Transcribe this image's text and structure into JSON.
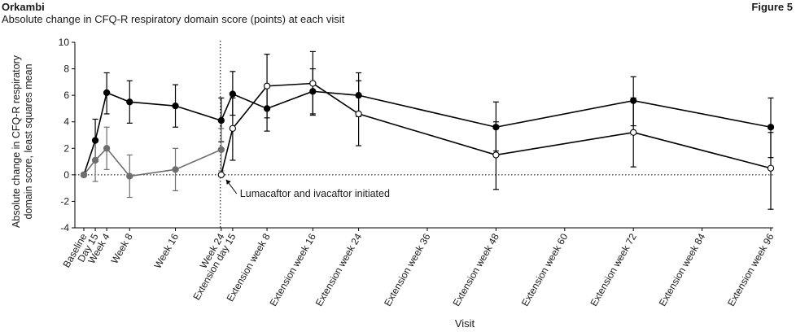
{
  "header": {
    "brand": "Orkambi",
    "subtitle": "Absolute change in CFQ-R respiratory domain score (points) at each visit",
    "figure_label": "Figure 5"
  },
  "chart_data": {
    "type": "line",
    "xlabel": "Visit",
    "ylabel_lines": [
      "Absolute change in CFQ-R respiratory",
      "domain score, least squares mean"
    ],
    "ylim": [
      -4,
      10
    ],
    "yticks": [
      -4,
      -2,
      0,
      2,
      4,
      6,
      8,
      10
    ],
    "visits": [
      {
        "label": "Baseline",
        "pos": 0
      },
      {
        "label": "Day 15",
        "pos": 0.5
      },
      {
        "label": "Week 4",
        "pos": 1
      },
      {
        "label": "Week 8",
        "pos": 2
      },
      {
        "label": "Week 16",
        "pos": 4
      },
      {
        "label": "Week 24",
        "pos": 6
      },
      {
        "label": "Extension day 15",
        "pos": 6.5
      },
      {
        "label": "Extension week 8",
        "pos": 8
      },
      {
        "label": "Extension week 16",
        "pos": 10
      },
      {
        "label": "Extension week 24",
        "pos": 12
      },
      {
        "label": "Extension week 36",
        "pos": 15
      },
      {
        "label": "Extension week 48",
        "pos": 18
      },
      {
        "label": "Extension week 60",
        "pos": 21
      },
      {
        "label": "Extension week 72",
        "pos": 24
      },
      {
        "label": "Extension week 84",
        "pos": 27
      },
      {
        "label": "Extension week 96",
        "pos": 30
      }
    ],
    "zero_line": 0,
    "treatment_start_pos": 6,
    "annotation": "Lumacaftor and ivacaftor initiated",
    "series": [
      {
        "id": "A",
        "line_color": "#000000",
        "marker_fill": "#000000",
        "points": [
          {
            "pos": 0,
            "y": 0,
            "lo": 0,
            "hi": 0
          },
          {
            "pos": 0.5,
            "y": 2.6,
            "lo": 1.0,
            "hi": 4.2
          },
          {
            "pos": 1,
            "y": 6.2,
            "lo": 4.6,
            "hi": 7.7
          },
          {
            "pos": 2,
            "y": 5.5,
            "lo": 3.9,
            "hi": 7.1
          },
          {
            "pos": 4,
            "y": 5.2,
            "lo": 3.6,
            "hi": 6.8
          },
          {
            "pos": 6,
            "y": 4.1,
            "lo": 2.5,
            "hi": 5.8
          },
          {
            "pos": 6.5,
            "y": 6.1,
            "lo": 4.5,
            "hi": 7.8
          },
          {
            "pos": 8,
            "y": 5.0,
            "lo": 3.3,
            "hi": 6.7
          },
          {
            "pos": 10,
            "y": 6.3,
            "lo": 4.6,
            "hi": 8.0
          },
          {
            "pos": 12,
            "y": 6.0,
            "lo": 4.4,
            "hi": 7.7
          },
          {
            "pos": 18,
            "y": 3.6,
            "lo": 1.8,
            "hi": 5.5
          },
          {
            "pos": 24,
            "y": 5.6,
            "lo": 3.7,
            "hi": 7.4
          },
          {
            "pos": 30,
            "y": 3.6,
            "lo": 1.3,
            "hi": 5.8
          }
        ]
      },
      {
        "id": "B",
        "line_color": "#6e6e6e",
        "marker_fill": "#6e6e6e",
        "points": [
          {
            "pos": 0,
            "y": 0,
            "lo": 0,
            "hi": 0
          },
          {
            "pos": 0.5,
            "y": 1.1,
            "lo": -0.5,
            "hi": 2.7
          },
          {
            "pos": 1,
            "y": 2.0,
            "lo": 0.4,
            "hi": 3.6
          },
          {
            "pos": 2,
            "y": -0.1,
            "lo": -1.7,
            "hi": 1.5
          },
          {
            "pos": 4,
            "y": 0.4,
            "lo": -1.2,
            "hi": 2.0
          },
          {
            "pos": 6,
            "y": 1.9,
            "lo": 0.3,
            "hi": 3.5
          }
        ]
      },
      {
        "id": "C",
        "line_color": "#000000",
        "marker_fill": "#ffffff",
        "points": [
          {
            "pos": 6,
            "y": 0,
            "lo": 0,
            "hi": 0
          },
          {
            "pos": 6.5,
            "y": 3.5,
            "lo": 1.1,
            "hi": 5.8
          },
          {
            "pos": 8,
            "y": 6.7,
            "lo": 4.3,
            "hi": 9.1
          },
          {
            "pos": 10,
            "y": 6.9,
            "lo": 4.5,
            "hi": 9.3
          },
          {
            "pos": 12,
            "y": 4.6,
            "lo": 2.2,
            "hi": 7.1
          },
          {
            "pos": 18,
            "y": 1.5,
            "lo": -1.1,
            "hi": 4.0
          },
          {
            "pos": 24,
            "y": 3.2,
            "lo": 0.6,
            "hi": 5.8
          },
          {
            "pos": 30,
            "y": 0.5,
            "lo": -2.6,
            "hi": 3.2
          }
        ]
      }
    ]
  }
}
